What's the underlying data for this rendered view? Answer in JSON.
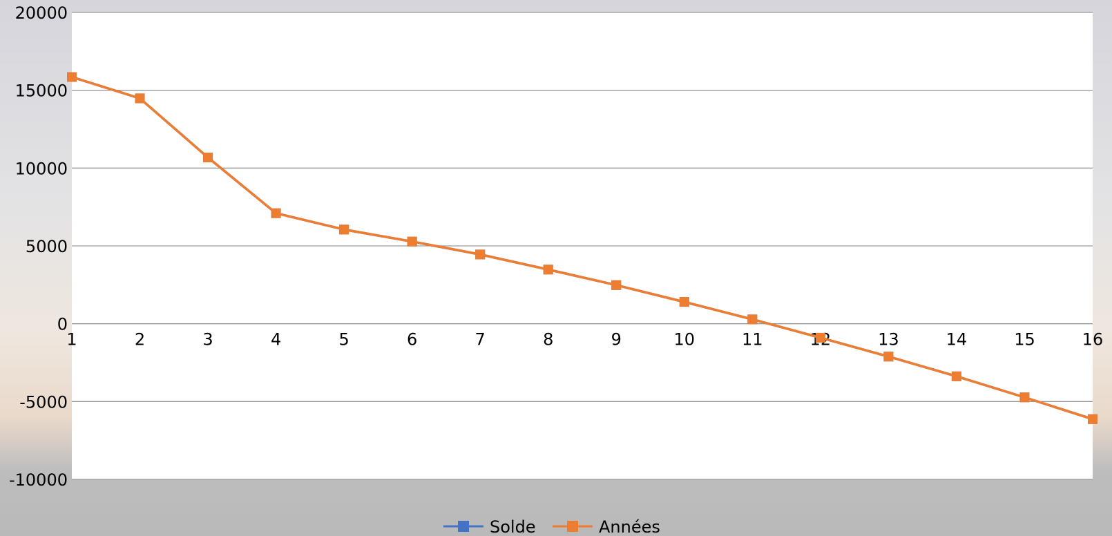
{
  "chart_data": {
    "type": "line",
    "title": "",
    "xlabel": "",
    "ylabel": "",
    "categories": [
      "1",
      "2",
      "3",
      "4",
      "5",
      "6",
      "7",
      "8",
      "9",
      "10",
      "11",
      "12",
      "13",
      "14",
      "15",
      "16"
    ],
    "ylim": [
      -10000,
      20000
    ],
    "yticks": [
      "20000",
      "15000",
      "10000",
      "5000",
      "0",
      "-5000",
      "-10000"
    ],
    "ytick_values": [
      20000,
      15000,
      10000,
      5000,
      0,
      -5000,
      -10000
    ],
    "grid": true,
    "legend_position": "bottom",
    "series": [
      {
        "name": "Solde",
        "color": "#4472c4",
        "marker": "square",
        "values": [
          15850,
          14480,
          10680,
          7100,
          6050,
          5280,
          4450,
          3480,
          2480,
          1400,
          280,
          -900,
          -2110,
          -3380,
          -4730,
          -6130
        ]
      },
      {
        "name": "Années",
        "color": "#ed7d31",
        "marker": "square",
        "values": [
          15850,
          14480,
          10680,
          7100,
          6050,
          5280,
          4450,
          3480,
          2480,
          1400,
          280,
          -900,
          -2110,
          -3380,
          -4730,
          -6130
        ]
      }
    ]
  }
}
